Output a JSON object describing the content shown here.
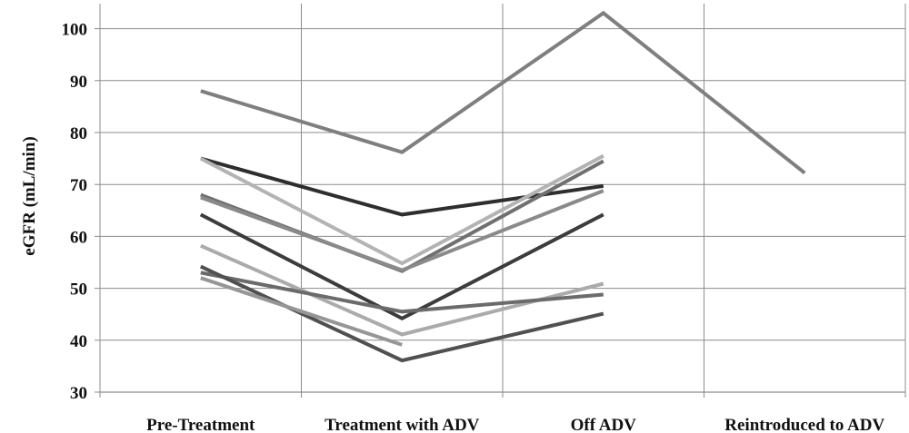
{
  "chart_data": {
    "type": "line",
    "title": "",
    "xlabel": "",
    "ylabel": "eGFR (mL/min)",
    "ylim": [
      30,
      105
    ],
    "yticks": [
      30,
      40,
      50,
      60,
      70,
      80,
      90,
      100
    ],
    "grid": true,
    "legend": "none",
    "categories": [
      "Pre-Treatment",
      "Treatment with ADV",
      "Off ADV",
      "Reintroduced to ADV"
    ],
    "series": [
      {
        "color": "#7f7f7f",
        "values": [
          88,
          76.2,
          103,
          72.2
        ]
      },
      {
        "color": "#2e2e2e",
        "values": [
          75,
          64.2,
          69.7,
          null
        ]
      },
      {
        "color": "#b3b3b3",
        "values": [
          75,
          54.8,
          75.5,
          null
        ]
      },
      {
        "color": "#707070",
        "values": [
          68,
          53.3,
          74.5,
          null
        ]
      },
      {
        "color": "#8a8a8a",
        "values": [
          67.5,
          53.5,
          68.8,
          null
        ]
      },
      {
        "color": "#3c3c3c",
        "values": [
          64.2,
          44.2,
          64.2,
          null
        ]
      },
      {
        "color": "#ababab",
        "values": [
          58.2,
          41.1,
          50.9,
          null
        ]
      },
      {
        "color": "#6b6b6b",
        "values": [
          53,
          45.5,
          48.8,
          null
        ]
      },
      {
        "color": "#505050",
        "values": [
          54.2,
          36.1,
          45.1,
          null
        ]
      },
      {
        "color": "#969696",
        "values": [
          52,
          39.1,
          null,
          null
        ]
      }
    ]
  }
}
